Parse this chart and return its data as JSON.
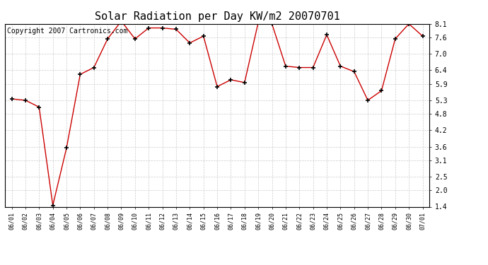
{
  "title": "Solar Radiation per Day KW/m2 20070701",
  "copyright_text": "Copyright 2007 Cartronics.com",
  "dates": [
    "06/01",
    "06/02",
    "06/03",
    "06/04",
    "06/05",
    "06/06",
    "06/07",
    "06/08",
    "06/09",
    "06/10",
    "06/11",
    "06/12",
    "06/13",
    "06/14",
    "06/15",
    "06/16",
    "06/17",
    "06/18",
    "06/19",
    "06/20",
    "06/21",
    "06/22",
    "06/23",
    "06/24",
    "06/25",
    "06/26",
    "06/27",
    "06/28",
    "06/29",
    "06/30",
    "07/01"
  ],
  "values": [
    5.35,
    5.3,
    5.05,
    1.45,
    3.55,
    6.25,
    6.5,
    7.55,
    8.2,
    7.55,
    7.95,
    7.95,
    7.9,
    7.4,
    7.65,
    5.8,
    6.05,
    5.95,
    8.15,
    8.1,
    6.55,
    6.5,
    6.5,
    7.7,
    6.55,
    6.35,
    5.3,
    5.65,
    7.55,
    8.1,
    7.65
  ],
  "line_color": "#cc0000",
  "marker_color": "#000000",
  "background_color": "#ffffff",
  "grid_color": "#cccccc",
  "yticks": [
    1.4,
    2.0,
    2.5,
    3.1,
    3.6,
    4.2,
    4.8,
    5.3,
    5.9,
    6.4,
    7.0,
    7.6,
    8.1
  ],
  "ylim": [
    1.4,
    8.1
  ],
  "title_fontsize": 11,
  "copyright_fontsize": 7,
  "tick_fontsize": 7,
  "xtick_fontsize": 6
}
